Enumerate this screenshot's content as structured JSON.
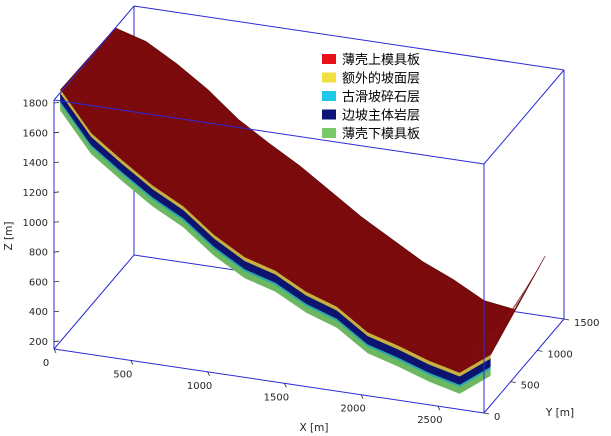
{
  "chart_data": {
    "type": "surface3d",
    "title": "",
    "xlabel": "X [m]",
    "ylabel": "Y [m]",
    "zlabel": "Z [m]",
    "xlim": [
      0,
      2800
    ],
    "ylim": [
      0,
      1500
    ],
    "zlim": [
      150,
      1820
    ],
    "x_ticks": [
      "0",
      "500",
      "1000",
      "1500",
      "2000",
      "2500"
    ],
    "y_ticks": [
      "0",
      "500",
      "1000",
      "1500"
    ],
    "z_ticks": [
      "200",
      "400",
      "600",
      "800",
      "1000",
      "1200",
      "1400",
      "1600",
      "1800"
    ],
    "legend_position": "top-right",
    "series": [
      {
        "name": "薄壳上模具板",
        "color": "#e8101a"
      },
      {
        "name": "额外的坡面层",
        "color": "#f0e040"
      },
      {
        "name": "古滑坡碎石层",
        "color": "#20c8e8"
      },
      {
        "name": "边坡主体岩层",
        "color": "#0c1478"
      },
      {
        "name": "薄壳下模具板",
        "color": "#78c868"
      }
    ],
    "surface_colors": {
      "top": "#7a0a0c",
      "yellow": "#c8b040",
      "cyan": "#2aa6b0",
      "navy": "#0c1470",
      "green": "#6cb860"
    },
    "profile": {
      "x": [
        0,
        200,
        400,
        600,
        800,
        1000,
        1200,
        1400,
        1600,
        1800,
        2000,
        2200,
        2400,
        2600,
        2800
      ],
      "front_bottom_z": [
        1700,
        1440,
        1290,
        1150,
        1040,
        880,
        760,
        700,
        590,
        520,
        380,
        320,
        250,
        200,
        350
      ],
      "crest_z": [
        1820,
        1760,
        1640,
        1500,
        1330,
        1200,
        1080,
        940,
        800,
        680,
        560,
        470,
        360,
        330,
        720
      ]
    }
  }
}
